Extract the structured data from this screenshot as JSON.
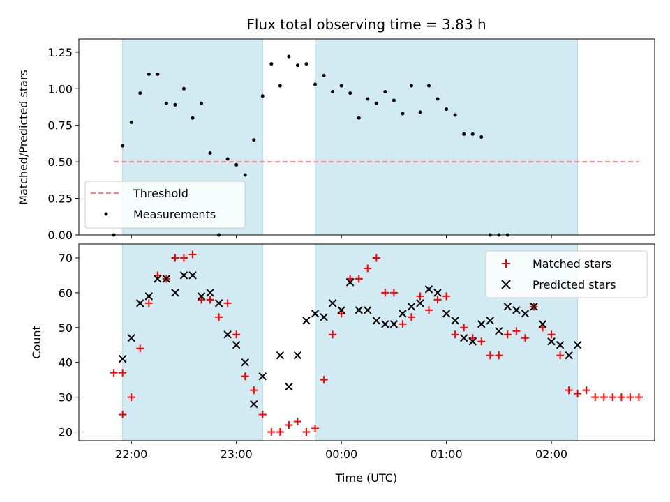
{
  "chart_data": [
    {
      "type": "scatter",
      "title": "Flux total observing time = 3.83 h",
      "ylabel": "Matched/Predicted stars",
      "xlabel": "",
      "ylim": [
        0,
        1.34
      ],
      "yticks": [
        "0.00",
        "0.25",
        "0.50",
        "0.75",
        "1.00",
        "1.25"
      ],
      "threshold": {
        "name": "Threshold",
        "value": 0.5,
        "x_range": [
          "21:50",
          "02:50"
        ],
        "color": "#ff8080"
      },
      "shaded_ranges": [
        [
          "21:55",
          "23:15"
        ],
        [
          "23:45",
          "02:15"
        ]
      ],
      "series": [
        {
          "name": "Measurements",
          "color": "#000000",
          "points": [
            [
              "21:50",
              0.0
            ],
            [
              "21:55",
              0.61
            ],
            [
              "22:00",
              0.77
            ],
            [
              "22:05",
              0.97
            ],
            [
              "22:10",
              1.1
            ],
            [
              "22:15",
              1.1
            ],
            [
              "22:20",
              0.9
            ],
            [
              "22:25",
              0.89
            ],
            [
              "22:30",
              1.0
            ],
            [
              "22:35",
              0.8
            ],
            [
              "22:40",
              0.9
            ],
            [
              "22:45",
              0.56
            ],
            [
              "22:50",
              0.0
            ],
            [
              "22:55",
              0.52
            ],
            [
              "23:00",
              0.48
            ],
            [
              "23:05",
              0.41
            ],
            [
              "23:10",
              0.65
            ],
            [
              "23:15",
              0.95
            ],
            [
              "23:20",
              1.17
            ],
            [
              "23:25",
              1.02
            ],
            [
              "23:30",
              1.22
            ],
            [
              "23:35",
              1.16
            ],
            [
              "23:40",
              1.17
            ],
            [
              "23:45",
              1.03
            ],
            [
              "23:50",
              1.09
            ],
            [
              "23:55",
              0.98
            ],
            [
              "00:00",
              1.02
            ],
            [
              "00:05",
              0.97
            ],
            [
              "00:10",
              0.8
            ],
            [
              "00:15",
              0.93
            ],
            [
              "00:20",
              0.9
            ],
            [
              "00:25",
              0.98
            ],
            [
              "00:30",
              0.92
            ],
            [
              "00:35",
              0.83
            ],
            [
              "00:40",
              1.02
            ],
            [
              "00:45",
              0.84
            ],
            [
              "00:50",
              1.02
            ],
            [
              "00:55",
              0.93
            ],
            [
              "01:00",
              0.86
            ],
            [
              "01:05",
              0.82
            ],
            [
              "01:10",
              0.69
            ],
            [
              "01:15",
              0.69
            ],
            [
              "01:20",
              0.67
            ],
            [
              "01:25",
              0.0
            ],
            [
              "01:30",
              0.0
            ],
            [
              "01:35",
              0.0
            ]
          ]
        }
      ],
      "legend": {
        "position": "lower-left",
        "entries": [
          "Threshold",
          "Measurements"
        ]
      }
    },
    {
      "type": "scatter",
      "title": "",
      "xlabel": "Time (UTC)",
      "ylabel": "Count",
      "ylim": [
        17.5,
        74
      ],
      "yticks": [
        "20",
        "30",
        "40",
        "50",
        "60",
        "70"
      ],
      "xticks": [
        "22:00",
        "23:00",
        "00:00",
        "01:00",
        "02:00"
      ],
      "xlim": [
        "21:30",
        "02:59"
      ],
      "shaded_ranges": [
        [
          "21:55",
          "23:15"
        ],
        [
          "23:45",
          "02:15"
        ]
      ],
      "series": [
        {
          "name": "Matched stars",
          "marker": "plus",
          "color": "#ff0000",
          "points": [
            [
              "21:50",
              37
            ],
            [
              "21:55",
              37
            ],
            [
              "21:55",
              25
            ],
            [
              "22:00",
              30
            ],
            [
              "22:05",
              44
            ],
            [
              "22:10",
              57
            ],
            [
              "22:15",
              65
            ],
            [
              "22:20",
              64
            ],
            [
              "22:25",
              70
            ],
            [
              "22:30",
              70
            ],
            [
              "22:35",
              71
            ],
            [
              "22:40",
              58
            ],
            [
              "22:45",
              58
            ],
            [
              "22:50",
              53
            ],
            [
              "22:55",
              57
            ],
            [
              "23:00",
              48
            ],
            [
              "23:05",
              36
            ],
            [
              "23:10",
              32
            ],
            [
              "23:15",
              25
            ],
            [
              "23:20",
              20
            ],
            [
              "23:25",
              20
            ],
            [
              "23:30",
              22
            ],
            [
              "23:35",
              23
            ],
            [
              "23:40",
              20
            ],
            [
              "23:45",
              21
            ],
            [
              "23:50",
              35
            ],
            [
              "23:55",
              48
            ],
            [
              "00:00",
              54
            ],
            [
              "00:05",
              64
            ],
            [
              "00:10",
              64
            ],
            [
              "00:15",
              67
            ],
            [
              "00:20",
              70
            ],
            [
              "00:25",
              60
            ],
            [
              "00:30",
              60
            ],
            [
              "00:35",
              51
            ],
            [
              "00:40",
              53
            ],
            [
              "00:45",
              59
            ],
            [
              "00:50",
              55
            ],
            [
              "00:55",
              58
            ],
            [
              "01:00",
              59
            ],
            [
              "01:05",
              48
            ],
            [
              "01:10",
              50
            ],
            [
              "01:15",
              47
            ],
            [
              "01:20",
              46
            ],
            [
              "01:25",
              42
            ],
            [
              "01:30",
              42
            ],
            [
              "01:35",
              48
            ],
            [
              "01:40",
              49
            ],
            [
              "01:45",
              47
            ],
            [
              "01:50",
              56
            ],
            [
              "01:55",
              50
            ],
            [
              "02:00",
              48
            ],
            [
              "02:05",
              42
            ],
            [
              "02:10",
              32
            ],
            [
              "02:15",
              31
            ],
            [
              "02:20",
              32
            ],
            [
              "02:25",
              30
            ],
            [
              "02:30",
              30
            ],
            [
              "02:35",
              30
            ],
            [
              "02:40",
              30
            ],
            [
              "02:45",
              30
            ],
            [
              "02:50",
              30
            ]
          ]
        },
        {
          "name": "Predicted stars",
          "marker": "x",
          "color": "#000000",
          "points": [
            [
              "21:55",
              41
            ],
            [
              "22:00",
              47
            ],
            [
              "22:05",
              57
            ],
            [
              "22:10",
              59
            ],
            [
              "22:15",
              64
            ],
            [
              "22:20",
              64
            ],
            [
              "22:25",
              60
            ],
            [
              "22:30",
              65
            ],
            [
              "22:35",
              65
            ],
            [
              "22:40",
              59
            ],
            [
              "22:45",
              60
            ],
            [
              "22:50",
              57
            ],
            [
              "22:55",
              48
            ],
            [
              "23:00",
              45
            ],
            [
              "23:05",
              40
            ],
            [
              "23:10",
              28
            ],
            [
              "23:15",
              36
            ],
            [
              "23:25",
              42
            ],
            [
              "23:30",
              33
            ],
            [
              "23:35",
              42
            ],
            [
              "23:40",
              52
            ],
            [
              "23:45",
              54
            ],
            [
              "23:50",
              53
            ],
            [
              "23:55",
              57
            ],
            [
              "00:00",
              55
            ],
            [
              "00:05",
              63
            ],
            [
              "00:10",
              55
            ],
            [
              "00:15",
              55
            ],
            [
              "00:20",
              52
            ],
            [
              "00:25",
              51
            ],
            [
              "00:30",
              51
            ],
            [
              "00:35",
              54
            ],
            [
              "00:40",
              56
            ],
            [
              "00:45",
              57
            ],
            [
              "00:50",
              61
            ],
            [
              "00:55",
              60
            ],
            [
              "01:00",
              54
            ],
            [
              "01:05",
              52
            ],
            [
              "01:10",
              47
            ],
            [
              "01:15",
              46
            ],
            [
              "01:20",
              51
            ],
            [
              "01:25",
              52
            ],
            [
              "01:30",
              49
            ],
            [
              "01:35",
              56
            ],
            [
              "01:40",
              55
            ],
            [
              "01:45",
              54
            ],
            [
              "01:50",
              56
            ],
            [
              "01:55",
              51
            ],
            [
              "02:00",
              46
            ],
            [
              "02:05",
              45
            ],
            [
              "02:10",
              42
            ],
            [
              "02:15",
              45
            ]
          ]
        }
      ],
      "legend": {
        "position": "top-right",
        "entries": [
          "Matched stars",
          "Predicted stars"
        ]
      }
    }
  ],
  "colors": {
    "shade": "#add8e6",
    "axis": "#000000",
    "background": "#ffffff"
  }
}
